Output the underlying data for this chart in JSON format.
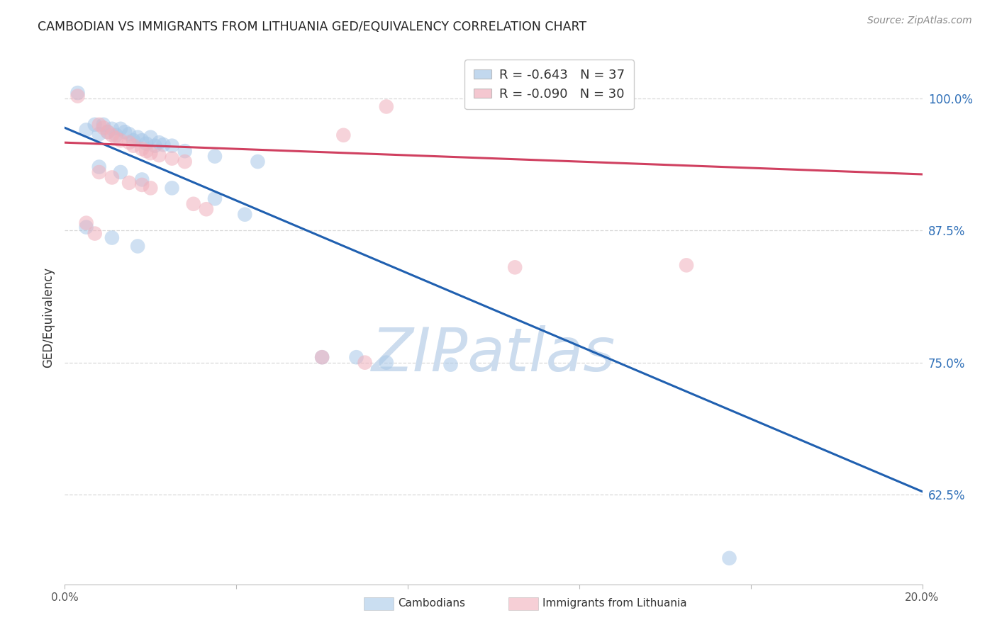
{
  "title": "CAMBODIAN VS IMMIGRANTS FROM LITHUANIA GED/EQUIVALENCY CORRELATION CHART",
  "source": "Source: ZipAtlas.com",
  "ylabel": "GED/Equivalency",
  "xlim": [
    0.0,
    0.2
  ],
  "ylim": [
    0.54,
    1.045
  ],
  "yticks": [
    0.625,
    0.75,
    0.875,
    1.0
  ],
  "ytick_labels": [
    "62.5%",
    "75.0%",
    "87.5%",
    "100.0%"
  ],
  "xtick_positions": [
    0.0,
    0.04,
    0.08,
    0.12,
    0.16,
    0.2
  ],
  "xtick_labels": [
    "0.0%",
    "",
    "",
    "",
    "",
    "20.0%"
  ],
  "blue_label": "Cambodians",
  "pink_label": "Immigrants from Lithuania",
  "blue_R": "-0.643",
  "blue_N": "37",
  "pink_R": "-0.090",
  "pink_N": "30",
  "blue_trendline_x": [
    0.0,
    0.2
  ],
  "blue_trendline_y": [
    0.972,
    0.628
  ],
  "pink_trendline_x": [
    0.0,
    0.2
  ],
  "pink_trendline_y": [
    0.958,
    0.928
  ],
  "blue_points": [
    [
      0.003,
      1.005
    ],
    [
      0.005,
      0.97
    ],
    [
      0.007,
      0.975
    ],
    [
      0.008,
      0.966
    ],
    [
      0.009,
      0.975
    ],
    [
      0.01,
      0.968
    ],
    [
      0.011,
      0.971
    ],
    [
      0.012,
      0.965
    ],
    [
      0.013,
      0.971
    ],
    [
      0.014,
      0.968
    ],
    [
      0.015,
      0.966
    ],
    [
      0.016,
      0.96
    ],
    [
      0.017,
      0.963
    ],
    [
      0.018,
      0.96
    ],
    [
      0.019,
      0.957
    ],
    [
      0.02,
      0.963
    ],
    [
      0.021,
      0.955
    ],
    [
      0.022,
      0.958
    ],
    [
      0.023,
      0.956
    ],
    [
      0.025,
      0.955
    ],
    [
      0.028,
      0.95
    ],
    [
      0.035,
      0.945
    ],
    [
      0.045,
      0.94
    ],
    [
      0.008,
      0.935
    ],
    [
      0.013,
      0.93
    ],
    [
      0.018,
      0.923
    ],
    [
      0.025,
      0.915
    ],
    [
      0.035,
      0.905
    ],
    [
      0.042,
      0.89
    ],
    [
      0.005,
      0.878
    ],
    [
      0.011,
      0.868
    ],
    [
      0.017,
      0.86
    ],
    [
      0.06,
      0.755
    ],
    [
      0.068,
      0.755
    ],
    [
      0.075,
      0.75
    ],
    [
      0.09,
      0.748
    ],
    [
      0.155,
      0.565
    ]
  ],
  "pink_points": [
    [
      0.003,
      1.002
    ],
    [
      0.008,
      0.975
    ],
    [
      0.009,
      0.972
    ],
    [
      0.01,
      0.968
    ],
    [
      0.011,
      0.965
    ],
    [
      0.012,
      0.962
    ],
    [
      0.013,
      0.96
    ],
    [
      0.015,
      0.958
    ],
    [
      0.016,
      0.955
    ],
    [
      0.018,
      0.952
    ],
    [
      0.019,
      0.95
    ],
    [
      0.02,
      0.948
    ],
    [
      0.022,
      0.946
    ],
    [
      0.025,
      0.943
    ],
    [
      0.028,
      0.94
    ],
    [
      0.008,
      0.93
    ],
    [
      0.011,
      0.925
    ],
    [
      0.015,
      0.92
    ],
    [
      0.018,
      0.918
    ],
    [
      0.02,
      0.915
    ],
    [
      0.03,
      0.9
    ],
    [
      0.033,
      0.895
    ],
    [
      0.005,
      0.882
    ],
    [
      0.007,
      0.872
    ],
    [
      0.065,
      0.965
    ],
    [
      0.075,
      0.992
    ],
    [
      0.105,
      0.84
    ],
    [
      0.06,
      0.755
    ],
    [
      0.07,
      0.75
    ],
    [
      0.145,
      0.842
    ]
  ],
  "blue_color": "#a8c8e8",
  "pink_color": "#f0b0bc",
  "blue_line_color": "#2060b0",
  "pink_line_color": "#d04060",
  "background_color": "#ffffff",
  "grid_color": "#d8d8d8",
  "watermark": "ZIPatlas",
  "watermark_color": "#ccdcee",
  "title_color": "#222222",
  "ytick_color": "#3070b8",
  "source_color": "#888888"
}
